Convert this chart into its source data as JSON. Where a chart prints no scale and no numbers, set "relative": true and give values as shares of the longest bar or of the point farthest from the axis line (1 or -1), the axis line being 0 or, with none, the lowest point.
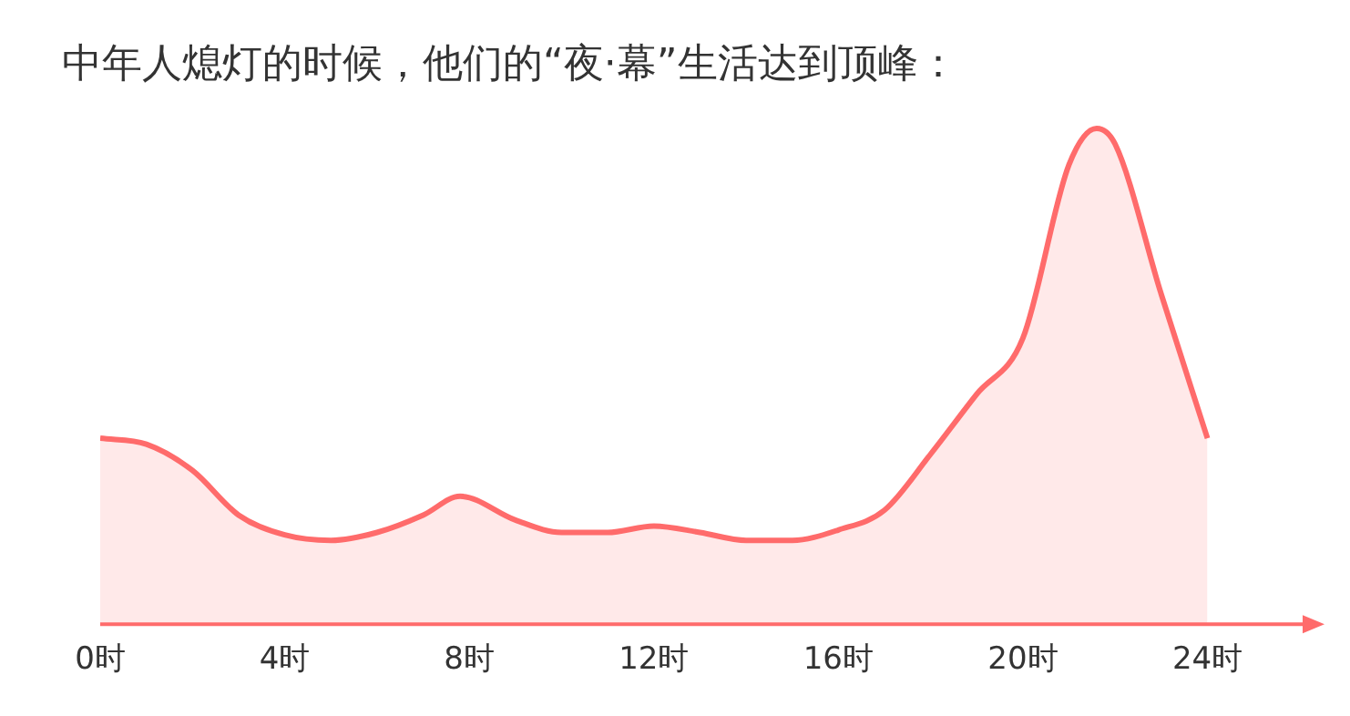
{
  "chart_data": {
    "type": "area",
    "title": "中年人熄灯的时候，他们的“夜·幕”生活达到顶峰：",
    "relative": true,
    "grid": false,
    "legend": false,
    "marker": "none",
    "line_style": "solid",
    "x": [
      0,
      1,
      2,
      3,
      4,
      5,
      6,
      7,
      7.8,
      9,
      10,
      11,
      12,
      13,
      14,
      15,
      16,
      17,
      18,
      19,
      20,
      21,
      21.6,
      22,
      23,
      24
    ],
    "series": [
      {
        "color": "#ff6b6b",
        "values": [
          0.375,
          0.363,
          0.31,
          0.22,
          0.18,
          0.169,
          0.185,
          0.22,
          0.258,
          0.21,
          0.185,
          0.185,
          0.198,
          0.185,
          0.169,
          0.169,
          0.19,
          0.23,
          0.343,
          0.464,
          0.577,
          0.927,
          1,
          0.968,
          0.665,
          0.375
        ]
      }
    ],
    "xlim": [
      0,
      26.3
    ],
    "xticks": [
      {
        "value": 0,
        "label": "0时"
      },
      {
        "value": 4,
        "label": "4时"
      },
      {
        "value": 8,
        "label": "8时"
      },
      {
        "value": 12,
        "label": "12时"
      },
      {
        "value": 16,
        "label": "16时"
      },
      {
        "value": 20,
        "label": "20时"
      },
      {
        "value": 24,
        "label": "24时"
      }
    ]
  }
}
